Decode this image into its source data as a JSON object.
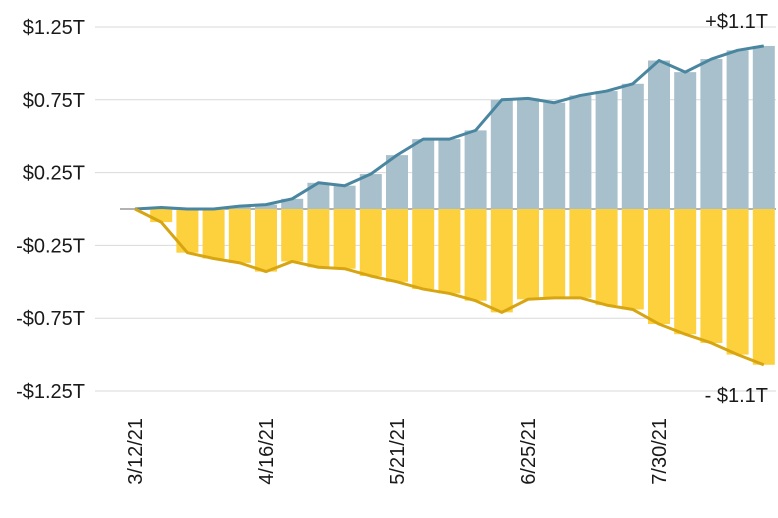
{
  "chart_data": {
    "type": "bar",
    "title": "",
    "xlabel": "",
    "ylabel": "",
    "ylim": [
      -1.25,
      1.25
    ],
    "y_ticks": [
      {
        "value": 1.25,
        "label": "$1.25T"
      },
      {
        "value": 0.75,
        "label": "$0.75T"
      },
      {
        "value": 0.25,
        "label": "$0.25T"
      },
      {
        "value": -0.25,
        "label": "-$0.25T"
      },
      {
        "value": -0.75,
        "label": "-$0.75T"
      },
      {
        "value": -1.25,
        "label": "-$1.25T"
      }
    ],
    "x_ticks": [
      {
        "index": 0,
        "label": "3/12/21"
      },
      {
        "index": 5,
        "label": "4/16/21"
      },
      {
        "index": 10,
        "label": "5/21/21"
      },
      {
        "index": 15,
        "label": "6/25/21"
      },
      {
        "index": 20,
        "label": "7/30/21"
      }
    ],
    "grid": true,
    "colors": {
      "positive_bar": "#a8c0cc",
      "positive_line": "#4a86a0",
      "negative_bar": "#fdd03e",
      "negative_line": "#d8a512",
      "grid": "#d9d9d9",
      "zero_line": "#999999"
    },
    "series": [
      {
        "values": [
          0.0,
          0.01,
          0.0,
          0.0,
          0.02,
          0.03,
          0.07,
          0.18,
          0.16,
          0.24,
          0.37,
          0.48,
          0.48,
          0.54,
          0.75,
          0.76,
          0.73,
          0.78,
          0.81,
          0.86,
          1.02,
          0.94,
          1.03,
          1.09,
          1.12
        ]
      },
      {
        "values": [
          0.0,
          -0.09,
          -0.3,
          -0.34,
          -0.37,
          -0.43,
          -0.36,
          -0.4,
          -0.41,
          -0.46,
          -0.5,
          -0.55,
          -0.58,
          -0.63,
          -0.71,
          -0.62,
          -0.61,
          -0.61,
          -0.66,
          -0.69,
          -0.79,
          -0.86,
          -0.92,
          -1.0,
          -1.07
        ]
      }
    ],
    "end_labels": {
      "positive": "+$1.1T",
      "negative": "- $1.1T"
    }
  }
}
